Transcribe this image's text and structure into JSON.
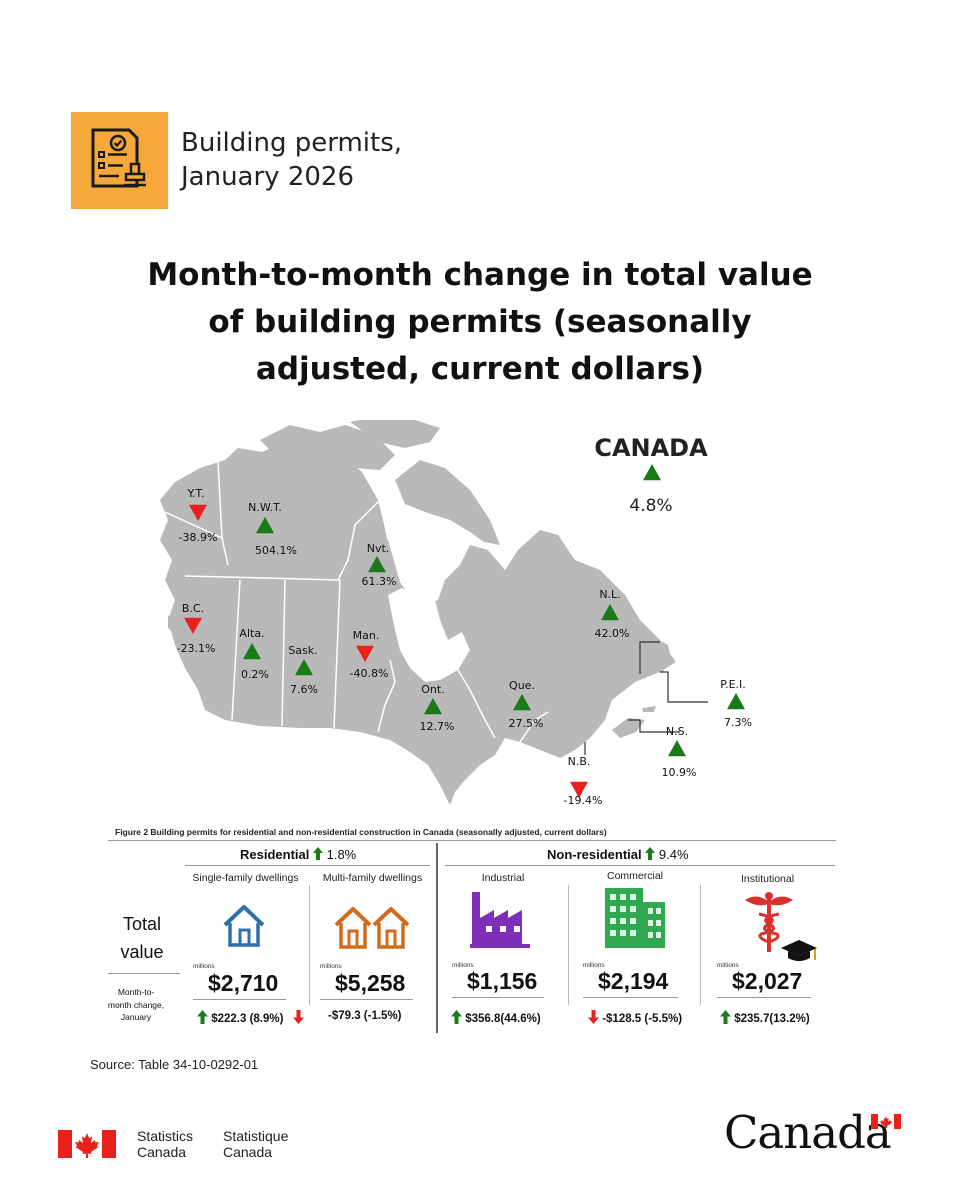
{
  "header": {
    "icon": "permit-document-stamp-icon",
    "title_line1": "Building permits,",
    "title_line2": "January 2026"
  },
  "main_title": {
    "line1": "Month-to-month change in total value",
    "line2": "of building permits (seasonally",
    "line3": "adjusted, current dollars)"
  },
  "colors": {
    "up": "#1a7a1a",
    "down": "#e8211c",
    "land": "#b9b9b9",
    "accent": "#f7a83b"
  },
  "chart_data": [
    {
      "type": "map",
      "title": "Month-to-month change in total value of building permits (seasonally adjusted, current dollars)",
      "national": {
        "name": "CANADA",
        "value": 4.8,
        "label": "4.8%",
        "direction": "up"
      },
      "regions": [
        {
          "name": "Y.T.",
          "value": -38.9,
          "label": "-38.9%",
          "direction": "down"
        },
        {
          "name": "N.W.T.",
          "value": 504.1,
          "label": "504.1%",
          "direction": "up"
        },
        {
          "name": "Nvt.",
          "value": 61.3,
          "label": "61.3%",
          "direction": "up"
        },
        {
          "name": "B.C.",
          "value": -23.1,
          "label": "-23.1%",
          "direction": "down"
        },
        {
          "name": "Alta.",
          "value": 0.2,
          "label": "0.2%",
          "direction": "up"
        },
        {
          "name": "Sask.",
          "value": 7.6,
          "label": "7.6%",
          "direction": "up"
        },
        {
          "name": "Man.",
          "value": -40.8,
          "label": "-40.8%",
          "direction": "down"
        },
        {
          "name": "Ont.",
          "value": 12.7,
          "label": "12.7%",
          "direction": "up"
        },
        {
          "name": "Que.",
          "value": 27.5,
          "label": "27.5%",
          "direction": "up"
        },
        {
          "name": "N.L.",
          "value": 42.0,
          "label": "42.0%",
          "direction": "up"
        },
        {
          "name": "P.E.I.",
          "value": 7.3,
          "label": "7.3%",
          "direction": "up"
        },
        {
          "name": "N.S.",
          "value": 10.9,
          "label": "10.9%",
          "direction": "up"
        },
        {
          "name": "N.B.",
          "value": -19.4,
          "label": "-19.4%",
          "direction": "down"
        }
      ]
    },
    {
      "type": "table",
      "title": "Figure 2  Building permits for residential and non-residential construction in Canada (seasonally adjusted, current dollars)",
      "row_label_total": [
        "Total",
        "value"
      ],
      "row_label_change": [
        "Month-to-",
        "month change,",
        "January"
      ],
      "units": "millions",
      "groups": [
        {
          "name": "Residential",
          "change": "1.8%",
          "direction": "up",
          "categories": [
            {
              "name": "Single-family dwellings",
              "icon": "house-icon",
              "value": "$2,710",
              "change": "$222.3 (8.9%)",
              "direction": "up"
            },
            {
              "name": "Multi-family dwellings",
              "icon": "two-houses-icon",
              "value": "$5,258",
              "change": "-$79.3 (-1.5%)",
              "direction": "down"
            }
          ]
        },
        {
          "name": "Non-residential",
          "change": "9.4%",
          "direction": "up",
          "categories": [
            {
              "name": "Industrial",
              "icon": "factory-icon",
              "value": "$1,156",
              "change": "$356.8(44.6%)",
              "direction": "up"
            },
            {
              "name": "Commercial",
              "icon": "office-building-icon",
              "value": "$2,194",
              "change": "-$128.5 (-5.5%)",
              "direction": "down"
            },
            {
              "name": "Institutional",
              "icon": "caduceus-graduation-cap-icon",
              "value": "$2,027",
              "change": "$235.7(13.2%)",
              "direction": "up"
            }
          ]
        }
      ]
    }
  ],
  "source": "Source: Table 34-10-0292-01",
  "footer": {
    "flag_icon": "canada-flag-icon",
    "en_line1": "Statistics",
    "en_line2": "Canada",
    "fr_line1": "Statistique",
    "fr_line2": "Canada",
    "wordmark": "Canada"
  }
}
